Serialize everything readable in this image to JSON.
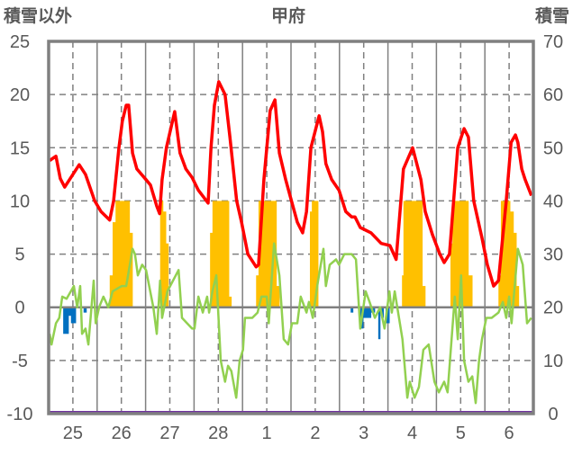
{
  "chart_data": {
    "type": "line",
    "title": "甲府",
    "ylabel_left": "積雪以外",
    "ylabel_right": "積雪",
    "ylim_left": [
      -10,
      25
    ],
    "ylim_right": [
      0,
      70
    ],
    "yticks_left": [
      "25",
      "20",
      "15",
      "10",
      "5",
      "0",
      "-5",
      "-10"
    ],
    "yticks_right": [
      "70",
      "60",
      "50",
      "40",
      "30",
      "20",
      "10",
      "0"
    ],
    "xtick_labels": [
      "25",
      "26",
      "27",
      "28",
      "1",
      "2",
      "3",
      "4",
      "5",
      "6"
    ],
    "x_unit": "days since start of day 25",
    "xlim": [
      0,
      10
    ],
    "grid": true,
    "colors": {
      "red": "#ff0000",
      "green": "#92d050",
      "yellow": "#ffc000",
      "blue": "#0070c0",
      "purple": "#7030a0",
      "axis": "#808080"
    },
    "series": [
      {
        "name": "red-line",
        "color": "#ff0000",
        "axis": "left",
        "points": [
          [
            0.02,
            13.8
          ],
          [
            0.15,
            14.2
          ],
          [
            0.24,
            12.1
          ],
          [
            0.33,
            11.3
          ],
          [
            0.63,
            13.4
          ],
          [
            0.76,
            12.5
          ],
          [
            0.95,
            10
          ],
          [
            1.08,
            9
          ],
          [
            1.26,
            8.2
          ],
          [
            1.34,
            10
          ],
          [
            1.45,
            15
          ],
          [
            1.52,
            17.5
          ],
          [
            1.6,
            19
          ],
          [
            1.65,
            19
          ],
          [
            1.73,
            14.5
          ],
          [
            1.82,
            13
          ],
          [
            2.01,
            12
          ],
          [
            2.1,
            11.5
          ],
          [
            2.23,
            9.5
          ],
          [
            2.29,
            8.8
          ],
          [
            2.34,
            12
          ],
          [
            2.43,
            15
          ],
          [
            2.6,
            18.4
          ],
          [
            2.71,
            14.5
          ],
          [
            2.83,
            13
          ],
          [
            2.96,
            12.2
          ],
          [
            3.09,
            11
          ],
          [
            3.29,
            9.8
          ],
          [
            3.35,
            15
          ],
          [
            3.42,
            19
          ],
          [
            3.51,
            21.2
          ],
          [
            3.64,
            20
          ],
          [
            3.74,
            16
          ],
          [
            3.88,
            10
          ],
          [
            3.98,
            8
          ],
          [
            4.11,
            5
          ],
          [
            4.28,
            3.8
          ],
          [
            4.33,
            4
          ],
          [
            4.44,
            12
          ],
          [
            4.57,
            18.5
          ],
          [
            4.67,
            19.5
          ],
          [
            4.76,
            14.5
          ],
          [
            4.89,
            12
          ],
          [
            4.98,
            10.5
          ],
          [
            5.13,
            8
          ],
          [
            5.24,
            7
          ],
          [
            5.32,
            9
          ],
          [
            5.41,
            15
          ],
          [
            5.58,
            18
          ],
          [
            5.65,
            16.5
          ],
          [
            5.72,
            13.5
          ],
          [
            5.84,
            12
          ],
          [
            5.99,
            11
          ],
          [
            6.13,
            9
          ],
          [
            6.25,
            8.5
          ],
          [
            6.32,
            8.5
          ],
          [
            6.43,
            7.5
          ],
          [
            6.65,
            7
          ],
          [
            6.86,
            6
          ],
          [
            7.04,
            5.8
          ],
          [
            7.17,
            4.5
          ],
          [
            7.32,
            13
          ],
          [
            7.51,
            15
          ],
          [
            7.68,
            12
          ],
          [
            7.77,
            9
          ],
          [
            7.92,
            6.8
          ],
          [
            8.07,
            5
          ],
          [
            8.16,
            4.2
          ],
          [
            8.27,
            5
          ],
          [
            8.44,
            15
          ],
          [
            8.57,
            16.8
          ],
          [
            8.66,
            16
          ],
          [
            8.77,
            10
          ],
          [
            8.94,
            6.5
          ],
          [
            9.05,
            4
          ],
          [
            9.18,
            2
          ],
          [
            9.28,
            2.5
          ],
          [
            9.44,
            10
          ],
          [
            9.54,
            15.5
          ],
          [
            9.63,
            16.2
          ],
          [
            9.68,
            15.5
          ],
          [
            9.76,
            13
          ],
          [
            9.83,
            12
          ],
          [
            9.96,
            10.5
          ]
        ]
      },
      {
        "name": "green-line",
        "color": "#92d050",
        "axis": "left",
        "points": [
          [
            0.02,
            -2.5
          ],
          [
            0.06,
            -3.5
          ],
          [
            0.15,
            -1.5
          ],
          [
            0.22,
            -1
          ],
          [
            0.28,
            1
          ],
          [
            0.37,
            0.8
          ],
          [
            0.52,
            2
          ],
          [
            0.59,
            0
          ],
          [
            0.65,
            2
          ],
          [
            0.69,
            -2.5
          ],
          [
            0.76,
            -2
          ],
          [
            0.82,
            -3.5
          ],
          [
            0.93,
            2.5
          ],
          [
            0.97,
            -1.5
          ],
          [
            1.04,
            0
          ],
          [
            1.13,
            1
          ],
          [
            1.23,
            0
          ],
          [
            1.32,
            1.5
          ],
          [
            1.51,
            2
          ],
          [
            1.6,
            2
          ],
          [
            1.73,
            5.5
          ],
          [
            1.78,
            5
          ],
          [
            1.84,
            3
          ],
          [
            1.93,
            4
          ],
          [
            2.01,
            3.5
          ],
          [
            2.16,
            0
          ],
          [
            2.23,
            -2.5
          ],
          [
            2.3,
            2.5
          ],
          [
            2.34,
            -1
          ],
          [
            2.45,
            1.5
          ],
          [
            2.68,
            3.5
          ],
          [
            2.75,
            -1
          ],
          [
            2.96,
            -2
          ],
          [
            3.01,
            -2
          ],
          [
            3.09,
            1
          ],
          [
            3.18,
            -0.5
          ],
          [
            3.27,
            1
          ],
          [
            3.31,
            -0.5
          ],
          [
            3.38,
            1.5
          ],
          [
            3.46,
            3
          ],
          [
            3.55,
            -5
          ],
          [
            3.64,
            -7
          ],
          [
            3.7,
            -5.5
          ],
          [
            3.77,
            -6
          ],
          [
            3.87,
            -8.5
          ],
          [
            3.94,
            -5
          ],
          [
            4.01,
            -4
          ],
          [
            4.05,
            -1
          ],
          [
            4.2,
            -1
          ],
          [
            4.31,
            -0.5
          ],
          [
            4.39,
            1
          ],
          [
            4.5,
            1
          ],
          [
            4.54,
            -1.5
          ],
          [
            4.65,
            6
          ],
          [
            4.76,
            3
          ],
          [
            4.85,
            -3
          ],
          [
            4.94,
            -3.5
          ],
          [
            5.02,
            -1.5
          ],
          [
            5.13,
            -1.5
          ],
          [
            5.2,
            1
          ],
          [
            5.32,
            -0.5
          ],
          [
            5.37,
            0.5
          ],
          [
            5.45,
            -1
          ],
          [
            5.54,
            2
          ],
          [
            5.67,
            5.5
          ],
          [
            5.72,
            2
          ],
          [
            5.8,
            4
          ],
          [
            5.93,
            4.5
          ],
          [
            5.99,
            4
          ],
          [
            6.1,
            5
          ],
          [
            6.25,
            5
          ],
          [
            6.34,
            4.5
          ],
          [
            6.43,
            -2
          ],
          [
            6.54,
            1.5
          ],
          [
            6.62,
            0.5
          ],
          [
            6.73,
            -1
          ],
          [
            6.84,
            0
          ],
          [
            6.93,
            -2
          ],
          [
            7.03,
            1.5
          ],
          [
            7.08,
            -0.5
          ],
          [
            7.14,
            1.5
          ],
          [
            7.3,
            -3
          ],
          [
            7.4,
            -8.5
          ],
          [
            7.45,
            -7
          ],
          [
            7.55,
            -8.5
          ],
          [
            7.64,
            -7.5
          ],
          [
            7.73,
            -4
          ],
          [
            7.84,
            -3.5
          ],
          [
            7.96,
            -7
          ],
          [
            8.05,
            -8
          ],
          [
            8.16,
            -7
          ],
          [
            8.23,
            -8
          ],
          [
            8.38,
            1
          ],
          [
            8.44,
            -3
          ],
          [
            8.51,
            3
          ],
          [
            8.57,
            -5
          ],
          [
            8.66,
            -7
          ],
          [
            8.74,
            -6.5
          ],
          [
            8.81,
            -9
          ],
          [
            8.88,
            -5
          ],
          [
            8.94,
            -3
          ],
          [
            9.03,
            -1
          ],
          [
            9.14,
            -1
          ],
          [
            9.28,
            -0.5
          ],
          [
            9.37,
            0.5
          ],
          [
            9.44,
            -1
          ],
          [
            9.5,
            1
          ],
          [
            9.55,
            -1.5
          ],
          [
            9.68,
            5.5
          ],
          [
            9.78,
            4
          ],
          [
            9.87,
            -1.5
          ],
          [
            9.96,
            -1
          ]
        ]
      }
    ],
    "bars_yellow": [
      [
        1.26,
        1.32,
        3
      ],
      [
        1.32,
        1.38,
        8
      ],
      [
        1.38,
        1.67,
        10
      ],
      [
        1.67,
        1.73,
        7
      ],
      [
        2.3,
        2.36,
        10
      ],
      [
        2.36,
        2.42,
        9
      ],
      [
        2.42,
        2.47,
        6
      ],
      [
        3.33,
        3.38,
        7
      ],
      [
        3.38,
        3.72,
        10
      ],
      [
        3.72,
        3.77,
        1
      ],
      [
        4.28,
        4.33,
        3
      ],
      [
        4.33,
        4.7,
        10
      ],
      [
        4.7,
        4.76,
        2
      ],
      [
        5.39,
        5.43,
        9
      ],
      [
        5.43,
        5.56,
        10
      ],
      [
        7.29,
        7.32,
        3
      ],
      [
        7.32,
        7.71,
        10
      ],
      [
        7.71,
        7.77,
        2
      ],
      [
        8.29,
        8.33,
        6
      ],
      [
        8.33,
        8.66,
        10
      ],
      [
        8.66,
        8.74,
        3
      ],
      [
        9.28,
        9.33,
        3
      ],
      [
        9.33,
        9.52,
        10
      ],
      [
        9.52,
        9.59,
        9
      ],
      [
        9.59,
        9.65,
        7
      ],
      [
        9.65,
        9.7,
        2
      ]
    ],
    "bars_blue": [
      [
        0.3,
        0.41,
        -2.5
      ],
      [
        0.41,
        0.46,
        -0.8
      ],
      [
        0.46,
        0.56,
        -1.5
      ],
      [
        0.72,
        0.78,
        -0.5
      ],
      [
        6.23,
        6.28,
        -0.5
      ],
      [
        6.43,
        6.49,
        -2
      ],
      [
        6.49,
        6.65,
        -1
      ],
      [
        6.65,
        6.73,
        -0.5
      ],
      [
        6.8,
        6.84,
        -3
      ],
      [
        6.86,
        6.91,
        -1
      ],
      [
        6.95,
        7.03,
        -1.5
      ]
    ],
    "snow_depth": {
      "name": "purple-line",
      "color": "#7030a0",
      "axis": "right",
      "value": 0
    }
  }
}
